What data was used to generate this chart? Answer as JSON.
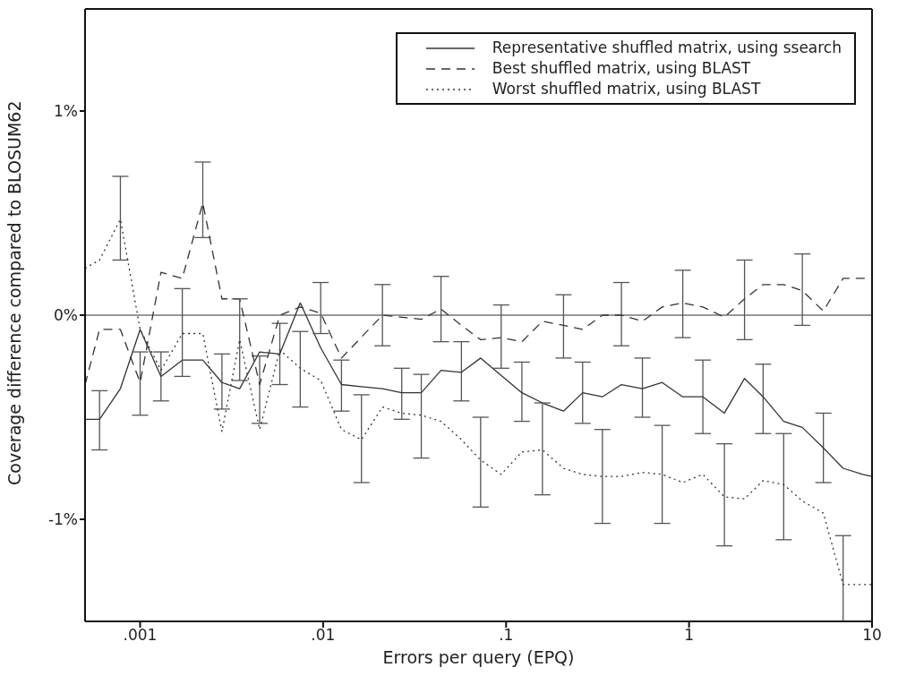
{
  "chart_data": {
    "type": "line",
    "xlabel": "Errors per query (EPQ)",
    "ylabel": "Coverage difference compared to BLOSUM62",
    "x": [
      0.0005,
      0.0006,
      0.00078,
      0.001,
      0.0013,
      0.0017,
      0.0022,
      0.0028,
      0.0035,
      0.0045,
      0.0058,
      0.0075,
      0.0097,
      0.0126,
      0.0162,
      0.0211,
      0.0269,
      0.0344,
      0.0441,
      0.057,
      0.0726,
      0.094,
      0.122,
      0.158,
      0.206,
      0.262,
      0.336,
      0.427,
      0.556,
      0.713,
      0.924,
      1.19,
      1.56,
      2.01,
      2.54,
      3.29,
      4.16,
      5.42,
      6.95,
      8.91,
      10
    ],
    "log": "x",
    "grid": false,
    "legend": "top right",
    "marker": "none",
    "xlim": [
      0.0005,
      10
    ],
    "xticks": [
      {
        "value": 0.001,
        "label": ".001"
      },
      {
        "value": 0.01,
        "label": ".01"
      },
      {
        "value": 0.1,
        "label": ".1"
      },
      1,
      10
    ],
    "ylim": [
      -1.5,
      1.5
    ],
    "yticks": [
      {
        "value": -1,
        "label": "-1%"
      },
      {
        "value": 0,
        "label": "0%"
      },
      {
        "value": 1,
        "label": "1%"
      }
    ],
    "ref_lines": [
      {
        "axis": "y",
        "value": 0,
        "color": "#333333",
        "line_style": "solid"
      }
    ],
    "series": [
      {
        "name": "Representative shuffled matrix, using ssearch",
        "color": "#333333",
        "line_style": "solid",
        "values": [
          -0.51,
          -0.51,
          -0.36,
          -0.07,
          -0.3,
          -0.22,
          -0.22,
          -0.33,
          -0.36,
          -0.18,
          -0.19,
          0.06,
          -0.16,
          -0.34,
          -0.35,
          -0.36,
          -0.38,
          -0.38,
          -0.27,
          -0.28,
          -0.21,
          null,
          -0.38,
          -0.43,
          -0.47,
          -0.38,
          -0.4,
          -0.34,
          -0.36,
          -0.33,
          -0.4,
          -0.4,
          -0.48,
          -0.31,
          -0.4,
          -0.52,
          -0.55,
          -0.65,
          -0.75,
          -0.78,
          -0.79
        ],
        "errors": [
          null,
          [
            -0.66,
            -0.37
          ],
          null,
          null,
          [
            -0.42,
            -0.18
          ],
          null,
          null,
          [
            -0.46,
            -0.19
          ],
          null,
          null,
          [
            -0.34,
            -0.04
          ],
          null,
          null,
          [
            -0.47,
            -0.22
          ],
          null,
          null,
          [
            -0.51,
            -0.26
          ],
          null,
          null,
          [
            -0.42,
            -0.13
          ],
          null,
          null,
          [
            -0.52,
            -0.23
          ],
          null,
          null,
          [
            -0.53,
            -0.23
          ],
          null,
          null,
          [
            -0.5,
            -0.21
          ],
          null,
          null,
          [
            -0.58,
            -0.22
          ],
          null,
          null,
          [
            -0.58,
            -0.24
          ],
          null,
          null,
          [
            -0.82,
            -0.48
          ],
          null,
          null,
          null
        ]
      },
      {
        "name": "Best shuffled matrix, using BLAST",
        "color": "#333333",
        "line_style": "dashed",
        "values": [
          -0.34,
          -0.07,
          -0.07,
          -0.33,
          0.21,
          0.18,
          0.55,
          0.08,
          0.08,
          -0.34,
          0.0,
          0.04,
          0.01,
          -0.21,
          null,
          0.0,
          -0.01,
          -0.02,
          0.03,
          -0.05,
          -0.12,
          -0.11,
          -0.13,
          -0.03,
          -0.05,
          -0.07,
          0.0,
          0.0,
          -0.03,
          0.04,
          0.06,
          0.04,
          -0.01,
          0.08,
          0.15,
          0.15,
          0.12,
          0.02,
          0.18,
          0.18,
          0.18
        ],
        "errors": [
          null,
          null,
          null,
          [
            -0.49,
            -0.18
          ],
          null,
          null,
          [
            0.38,
            0.75
          ],
          null,
          null,
          [
            -0.53,
            -0.2
          ],
          null,
          null,
          [
            -0.09,
            0.16
          ],
          null,
          null,
          [
            -0.15,
            0.15
          ],
          null,
          null,
          [
            -0.13,
            0.19
          ],
          null,
          null,
          [
            -0.26,
            0.05
          ],
          null,
          null,
          [
            -0.21,
            0.1
          ],
          null,
          null,
          [
            -0.15,
            0.16
          ],
          null,
          null,
          [
            -0.11,
            0.22
          ],
          null,
          null,
          [
            -0.12,
            0.27
          ],
          null,
          null,
          [
            -0.05,
            0.3
          ],
          null,
          null,
          null,
          null
        ]
      },
      {
        "name": "Worst shuffled matrix, using BLAST",
        "color": "#333333",
        "line_style": "dotted",
        "values": [
          0.23,
          0.27,
          0.47,
          -0.07,
          -0.27,
          -0.09,
          -0.09,
          -0.57,
          -0.12,
          -0.56,
          -0.17,
          -0.26,
          -0.32,
          -0.56,
          -0.61,
          -0.45,
          -0.48,
          -0.49,
          -0.52,
          -0.61,
          -0.71,
          -0.78,
          -0.67,
          -0.66,
          -0.75,
          -0.78,
          -0.79,
          -0.79,
          -0.77,
          -0.78,
          -0.82,
          -0.78,
          -0.89,
          -0.9,
          -0.81,
          -0.83,
          -0.91,
          -0.97,
          -1.32,
          -1.32,
          -1.32
        ],
        "errors": [
          null,
          null,
          [
            0.27,
            0.68
          ],
          null,
          null,
          [
            -0.3,
            0.13
          ],
          null,
          null,
          [
            -0.32,
            0.08
          ],
          null,
          null,
          [
            -0.45,
            -0.08
          ],
          null,
          null,
          [
            -0.82,
            -0.39
          ],
          null,
          null,
          [
            -0.7,
            -0.29
          ],
          null,
          null,
          [
            -0.94,
            -0.5
          ],
          null,
          null,
          [
            -0.88,
            -0.43
          ],
          null,
          null,
          [
            -1.02,
            -0.56
          ],
          null,
          null,
          [
            -1.02,
            -0.54
          ],
          null,
          null,
          [
            -1.13,
            -0.63
          ],
          null,
          null,
          [
            -1.1,
            -0.58
          ],
          null,
          null,
          [
            -1.5,
            -1.08
          ],
          null,
          null
        ]
      }
    ]
  }
}
